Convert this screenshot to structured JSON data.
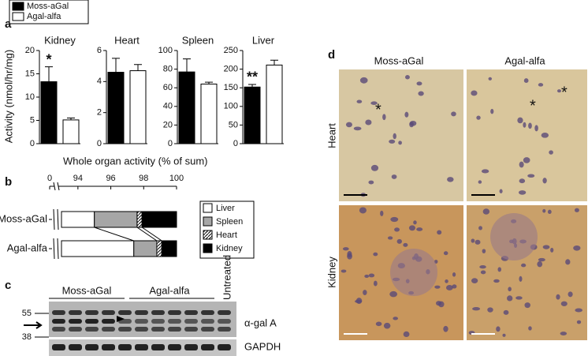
{
  "panel_labels": [
    "a",
    "b",
    "c",
    "d"
  ],
  "chart_data": [
    {
      "type": "bar",
      "ylabel": "Activity (nmol/hr/mg)",
      "series": [
        {
          "name": "Moss-aGal",
          "color": "#000000"
        },
        {
          "name": "Agal-alfa",
          "color": "#ffffff"
        }
      ],
      "panels": [
        {
          "title": "Kidney",
          "ylim": [
            0,
            20
          ],
          "yticks": [
            0,
            5,
            10,
            15,
            20
          ],
          "values": [
            13.3,
            5.1
          ],
          "errors": [
            3.2,
            0.4
          ],
          "value_annotations": [
            "*",
            null
          ]
        },
        {
          "title": "Heart",
          "ylim": [
            0,
            6
          ],
          "yticks": [
            0,
            2,
            4,
            6
          ],
          "values": [
            4.6,
            4.7
          ],
          "errors": [
            0.9,
            0.4
          ],
          "value_annotations": [
            null,
            null
          ]
        },
        {
          "title": "Spleen",
          "ylim": [
            0,
            100
          ],
          "yticks": [
            0,
            20,
            40,
            60,
            80,
            100
          ],
          "values": [
            77,
            64
          ],
          "errors": [
            14,
            2
          ],
          "value_annotations": [
            null,
            null
          ]
        },
        {
          "title": "Liver",
          "ylim": [
            0,
            250
          ],
          "yticks": [
            0,
            50,
            100,
            150,
            200,
            250
          ],
          "values": [
            152,
            211
          ],
          "errors": [
            7,
            13
          ],
          "value_annotations": [
            "**",
            null
          ]
        }
      ]
    },
    {
      "type": "stacked-barh",
      "title": "Whole organ activity (% of sum)",
      "categories": [
        "Moss-aGal",
        "Agal-alfa"
      ],
      "series": [
        {
          "name": "Liver",
          "color": "#ffffff",
          "values": [
            95.0,
            97.4
          ]
        },
        {
          "name": "Spleen",
          "color": "#a6a6a6",
          "values": [
            2.6,
            1.4
          ]
        },
        {
          "name": "Heart",
          "color": "#ffffff",
          "hatch": true,
          "values": [
            0.3,
            0.3
          ]
        },
        {
          "name": "Kidney",
          "color": "#000000",
          "values": [
            2.1,
            0.9
          ]
        }
      ],
      "xlim": [
        93,
        100
      ],
      "xticks": [
        0,
        94,
        96,
        98,
        100
      ],
      "axis_break": true
    }
  ],
  "blot": {
    "groups": [
      "Moss-aGal",
      "Agal-alfa",
      "Untreated"
    ],
    "mw_markers": [
      55,
      38
    ],
    "bands": [
      "α-gal A",
      "GAPDH"
    ]
  },
  "micrographs": {
    "columns": [
      "Moss-aGal",
      "Agal-alfa"
    ],
    "rows": [
      "Heart",
      "Kidney"
    ],
    "asterisks": [
      "*",
      "*",
      "*"
    ]
  }
}
